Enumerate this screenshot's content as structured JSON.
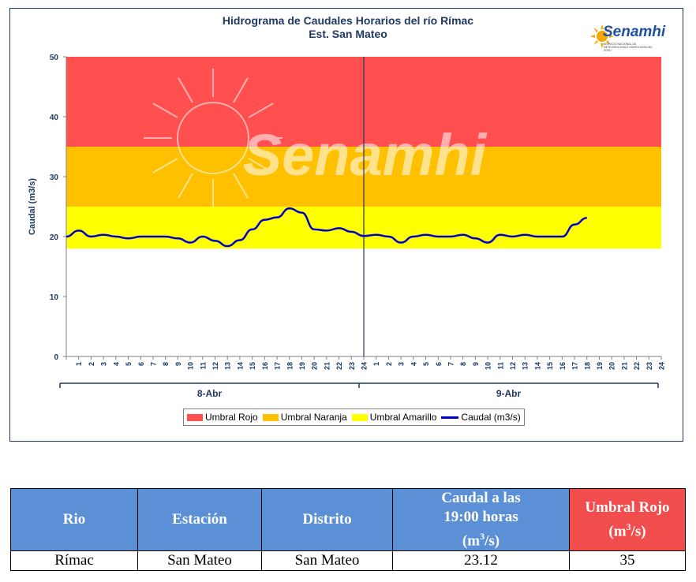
{
  "chart_data": {
    "type": "line",
    "title_line1": "Hidrograma de Caudales Horarios del río Rímac",
    "title_line2": "Est. San Mateo",
    "ylabel": "Caudal  (m3/s)",
    "ylim": [
      0,
      50
    ],
    "yticks": [
      "0",
      "10",
      "20",
      "30",
      "40",
      "50"
    ],
    "hour_labels": [
      "1",
      "2",
      "3",
      "4",
      "5",
      "6",
      "7",
      "8",
      "9",
      "10",
      "11",
      "12",
      "13",
      "14",
      "15",
      "16",
      "17",
      "18",
      "19",
      "20",
      "21",
      "22",
      "23",
      "24"
    ],
    "days": [
      "8-Abr",
      "9-Abr"
    ],
    "thresholds": [
      {
        "name": "Umbral Rojo",
        "from": 35,
        "to": 50,
        "color": "#ff4f4f"
      },
      {
        "name": "Umbral Naranja",
        "from": 25,
        "to": 35,
        "color": "#ffc000"
      },
      {
        "name": "Umbral Amarillo",
        "from": 18,
        "to": 25,
        "color": "#ffff00"
      }
    ],
    "series": [
      {
        "name": "Caudal (m3/s)",
        "color": "#0000cc",
        "values": [
          20.0,
          21.0,
          20.0,
          20.3,
          20.0,
          19.7,
          20.0,
          20.0,
          20.0,
          19.7,
          19.0,
          20.0,
          19.3,
          18.4,
          19.4,
          21.2,
          22.8,
          23.2,
          24.7,
          24.0,
          21.2,
          21.0,
          21.4,
          20.8,
          20.1,
          20.3,
          20.0,
          19.0,
          20.0,
          20.3,
          20.0,
          20.0,
          20.3,
          19.7,
          19.0,
          20.3,
          20.0,
          20.3,
          20.0,
          20.0,
          20.0,
          22.0,
          23.12
        ]
      }
    ],
    "watermark": "Senamhi"
  },
  "logo": {
    "name": "Senamhi",
    "subtitle": "SERVICIO NACIONAL DE METEOROLOGÍA E HIDROLOGÍA DEL PERÚ"
  },
  "legend": [
    {
      "label": "Umbral Rojo",
      "color": "#ff4f4f",
      "kind": "box"
    },
    {
      "label": "Umbral Naranja",
      "color": "#ffc000",
      "kind": "box"
    },
    {
      "label": "Umbral Amarillo",
      "color": "#ffff00",
      "kind": "box"
    },
    {
      "label": "Caudal (m3/s)",
      "color": "#0000cc",
      "kind": "line"
    }
  ],
  "table": {
    "headers": {
      "rio": "Rio",
      "estacion": "Estación",
      "distrito": "Distrito",
      "caudal_line1": "Caudal a las",
      "caudal_line2": "19:00 horas",
      "caudal_unit_pre": "(m",
      "caudal_unit_sup": "3",
      "caudal_unit_post": "/s)",
      "umbral_line1": "Umbral Rojo",
      "umbral_unit_pre": "(m",
      "umbral_unit_sup": "3",
      "umbral_unit_post": "/s)"
    },
    "row": {
      "rio": "Rímac",
      "estacion": "San Mateo",
      "distrito": "San Mateo",
      "caudal": "23.12",
      "umbral": "35"
    }
  }
}
